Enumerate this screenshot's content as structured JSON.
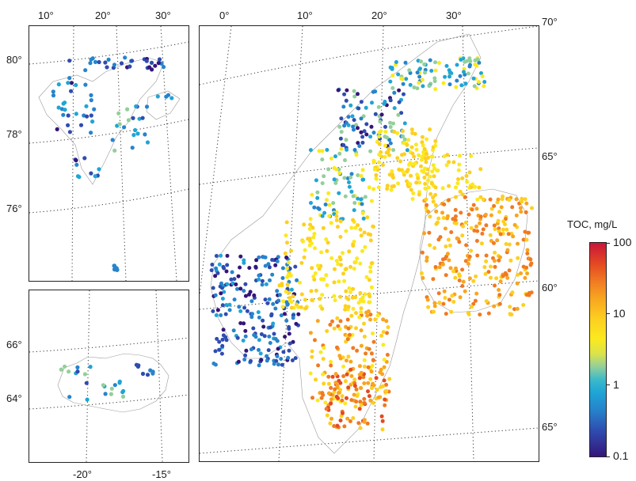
{
  "svalbard": {
    "lon_labels": [
      "10°",
      "20°",
      "30°"
    ],
    "lat_labels": [
      "80°",
      "78°",
      "76°"
    ]
  },
  "iceland": {
    "lon_labels": [
      "-20°",
      "-15°"
    ],
    "lat_labels": [
      "66°",
      "64°"
    ]
  },
  "fennoscandia": {
    "lon_labels": [
      "0°",
      "10°",
      "20°",
      "30°"
    ],
    "lat_labels": [
      "70°",
      "65°",
      "60°",
      "65°"
    ]
  },
  "colorbar": {
    "title": "TOC, mg/L",
    "ticks": [
      "100",
      "10",
      "1",
      "0.1"
    ],
    "colors": [
      "#35157a",
      "#2f4cb0",
      "#2684cc",
      "#1fa5d6",
      "#93cf9a",
      "#fbe91f",
      "#fdd020",
      "#f8a51f",
      "#f07a23",
      "#e44a22",
      "#c8163a"
    ]
  }
}
